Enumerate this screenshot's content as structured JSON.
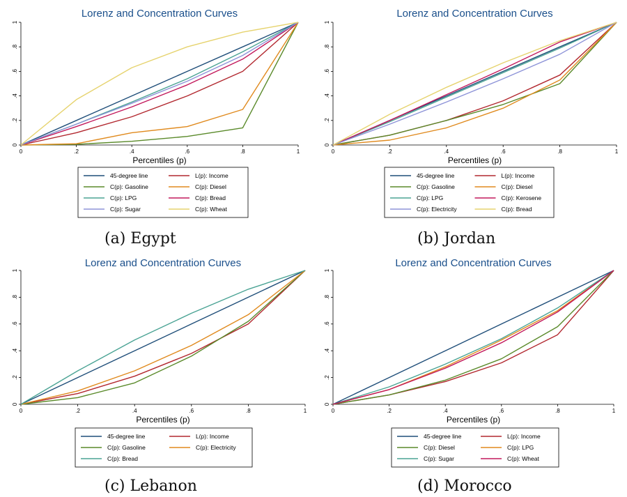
{
  "chart_data": [
    {
      "type": "line",
      "title": "Lorenz and Concentration Curves",
      "xlabel": "Percentiles (p)",
      "caption": "(a) Egypt",
      "xlim": [
        0,
        1
      ],
      "ylim": [
        0,
        1
      ],
      "x_ticks": [
        "0",
        ".2",
        ".4",
        ".6",
        ".8",
        "1"
      ],
      "y_ticks": [
        "0",
        ".2",
        ".4",
        ".6",
        ".8",
        "1"
      ],
      "x": [
        0,
        0.2,
        0.4,
        0.6,
        0.8,
        1
      ],
      "series": [
        {
          "name": "45-degree line",
          "color": "#1f4e79",
          "values": [
            0,
            0.2,
            0.4,
            0.6,
            0.8,
            1
          ]
        },
        {
          "name": "L(p): Income",
          "color": "#b2282f",
          "values": [
            0,
            0.1,
            0.23,
            0.4,
            0.6,
            1
          ]
        },
        {
          "name": "C(p): Gasoline",
          "color": "#5a8a2a",
          "values": [
            0,
            0.005,
            0.03,
            0.07,
            0.14,
            1
          ]
        },
        {
          "name": "C(p): Diesel",
          "color": "#e08a1e",
          "values": [
            0,
            0.01,
            0.1,
            0.15,
            0.29,
            1
          ]
        },
        {
          "name": "C(p): LPG",
          "color": "#4aa394",
          "values": [
            0,
            0.17,
            0.35,
            0.54,
            0.76,
            1
          ]
        },
        {
          "name": "C(p): Bread",
          "color": "#c2185b",
          "values": [
            0,
            0.15,
            0.31,
            0.49,
            0.7,
            1
          ]
        },
        {
          "name": "C(p): Sugar",
          "color": "#8d93d8",
          "values": [
            0,
            0.17,
            0.34,
            0.52,
            0.73,
            1
          ]
        },
        {
          "name": "C(p): Wheat",
          "color": "#e6d36e",
          "values": [
            0,
            0.37,
            0.63,
            0.8,
            0.92,
            1
          ]
        }
      ]
    },
    {
      "type": "line",
      "title": "Lorenz and Concentration Curves",
      "xlabel": "Percentiles (p)",
      "caption": "(b) Jordan",
      "xlim": [
        0,
        1
      ],
      "ylim": [
        0,
        1
      ],
      "x_ticks": [
        "0",
        ".2",
        ".4",
        ".6",
        ".8",
        "1"
      ],
      "y_ticks": [
        "0",
        ".2",
        ".4",
        ".6",
        ".8",
        "1"
      ],
      "x": [
        0,
        0.2,
        0.4,
        0.6,
        0.8,
        1
      ],
      "series": [
        {
          "name": "45-degree line",
          "color": "#1f4e79",
          "values": [
            0,
            0.2,
            0.4,
            0.6,
            0.8,
            1
          ]
        },
        {
          "name": "L(p): Income",
          "color": "#b2282f",
          "values": [
            0,
            0.08,
            0.2,
            0.36,
            0.57,
            1
          ]
        },
        {
          "name": "C(p): Gasoline",
          "color": "#5a8a2a",
          "values": [
            0,
            0.08,
            0.2,
            0.33,
            0.5,
            1
          ]
        },
        {
          "name": "C(p): Diesel",
          "color": "#e08a1e",
          "values": [
            0,
            0.04,
            0.14,
            0.3,
            0.53,
            1
          ]
        },
        {
          "name": "C(p): LPG",
          "color": "#4aa394",
          "values": [
            0,
            0.19,
            0.39,
            0.59,
            0.79,
            1
          ]
        },
        {
          "name": "C(p): Kerosene",
          "color": "#c2185b",
          "values": [
            0,
            0.2,
            0.41,
            0.62,
            0.84,
            1
          ]
        },
        {
          "name": "C(p): Electricity",
          "color": "#8d93d8",
          "values": [
            0,
            0.17,
            0.35,
            0.54,
            0.74,
            1
          ]
        },
        {
          "name": "C(p): Bread",
          "color": "#e6d36e",
          "values": [
            0,
            0.25,
            0.47,
            0.67,
            0.85,
            1
          ]
        }
      ]
    },
    {
      "type": "line",
      "title": "Lorenz and Concentration Curves",
      "xlabel": "Percentiles (p)",
      "caption": "(c) Lebanon",
      "xlim": [
        0,
        1
      ],
      "ylim": [
        0,
        1
      ],
      "x_ticks": [
        "0",
        ".2",
        ".4",
        ".6",
        ".8",
        "1"
      ],
      "y_ticks": [
        "0",
        ".2",
        ".4",
        ".6",
        ".8",
        "1"
      ],
      "x": [
        0,
        0.2,
        0.4,
        0.6,
        0.8,
        1
      ],
      "series": [
        {
          "name": "45-degree line",
          "color": "#1f4e79",
          "values": [
            0,
            0.2,
            0.4,
            0.6,
            0.8,
            1
          ]
        },
        {
          "name": "L(p): Income",
          "color": "#b2282f",
          "values": [
            0,
            0.08,
            0.21,
            0.38,
            0.6,
            1
          ]
        },
        {
          "name": "C(p): Gasoline",
          "color": "#5a8a2a",
          "values": [
            0,
            0.05,
            0.16,
            0.36,
            0.62,
            1
          ]
        },
        {
          "name": "C(p): Electricity",
          "color": "#e08a1e",
          "values": [
            0,
            0.1,
            0.25,
            0.44,
            0.67,
            1
          ]
        },
        {
          "name": "C(p): Bread",
          "color": "#4aa394",
          "values": [
            0,
            0.25,
            0.48,
            0.68,
            0.86,
            1
          ]
        }
      ]
    },
    {
      "type": "line",
      "title": "Lorenz and Concentration Curves",
      "xlabel": "Percentiles (p)",
      "caption": "(d) Morocco",
      "xlim": [
        0,
        1
      ],
      "ylim": [
        0,
        1
      ],
      "x_ticks": [
        "0",
        ".2",
        ".4",
        ".6",
        ".8",
        "1"
      ],
      "y_ticks": [
        "0",
        ".2",
        ".4",
        ".6",
        ".8",
        "1"
      ],
      "x": [
        0,
        0.2,
        0.4,
        0.6,
        0.8,
        1
      ],
      "series": [
        {
          "name": "45-degree line",
          "color": "#1f4e79",
          "values": [
            0,
            0.2,
            0.4,
            0.6,
            0.8,
            1
          ]
        },
        {
          "name": "L(p): Income",
          "color": "#b2282f",
          "values": [
            0,
            0.07,
            0.17,
            0.31,
            0.52,
            1
          ]
        },
        {
          "name": "C(p): Diesel",
          "color": "#5a8a2a",
          "values": [
            0,
            0.07,
            0.18,
            0.34,
            0.58,
            1
          ]
        },
        {
          "name": "C(p): LPG",
          "color": "#e08a1e",
          "values": [
            0,
            0.11,
            0.28,
            0.48,
            0.7,
            1
          ]
        },
        {
          "name": "C(p): Sugar",
          "color": "#4aa394",
          "values": [
            0,
            0.13,
            0.3,
            0.49,
            0.72,
            1
          ]
        },
        {
          "name": "C(p): Wheat",
          "color": "#c2185b",
          "values": [
            0,
            0.11,
            0.27,
            0.46,
            0.69,
            1
          ]
        }
      ]
    }
  ]
}
